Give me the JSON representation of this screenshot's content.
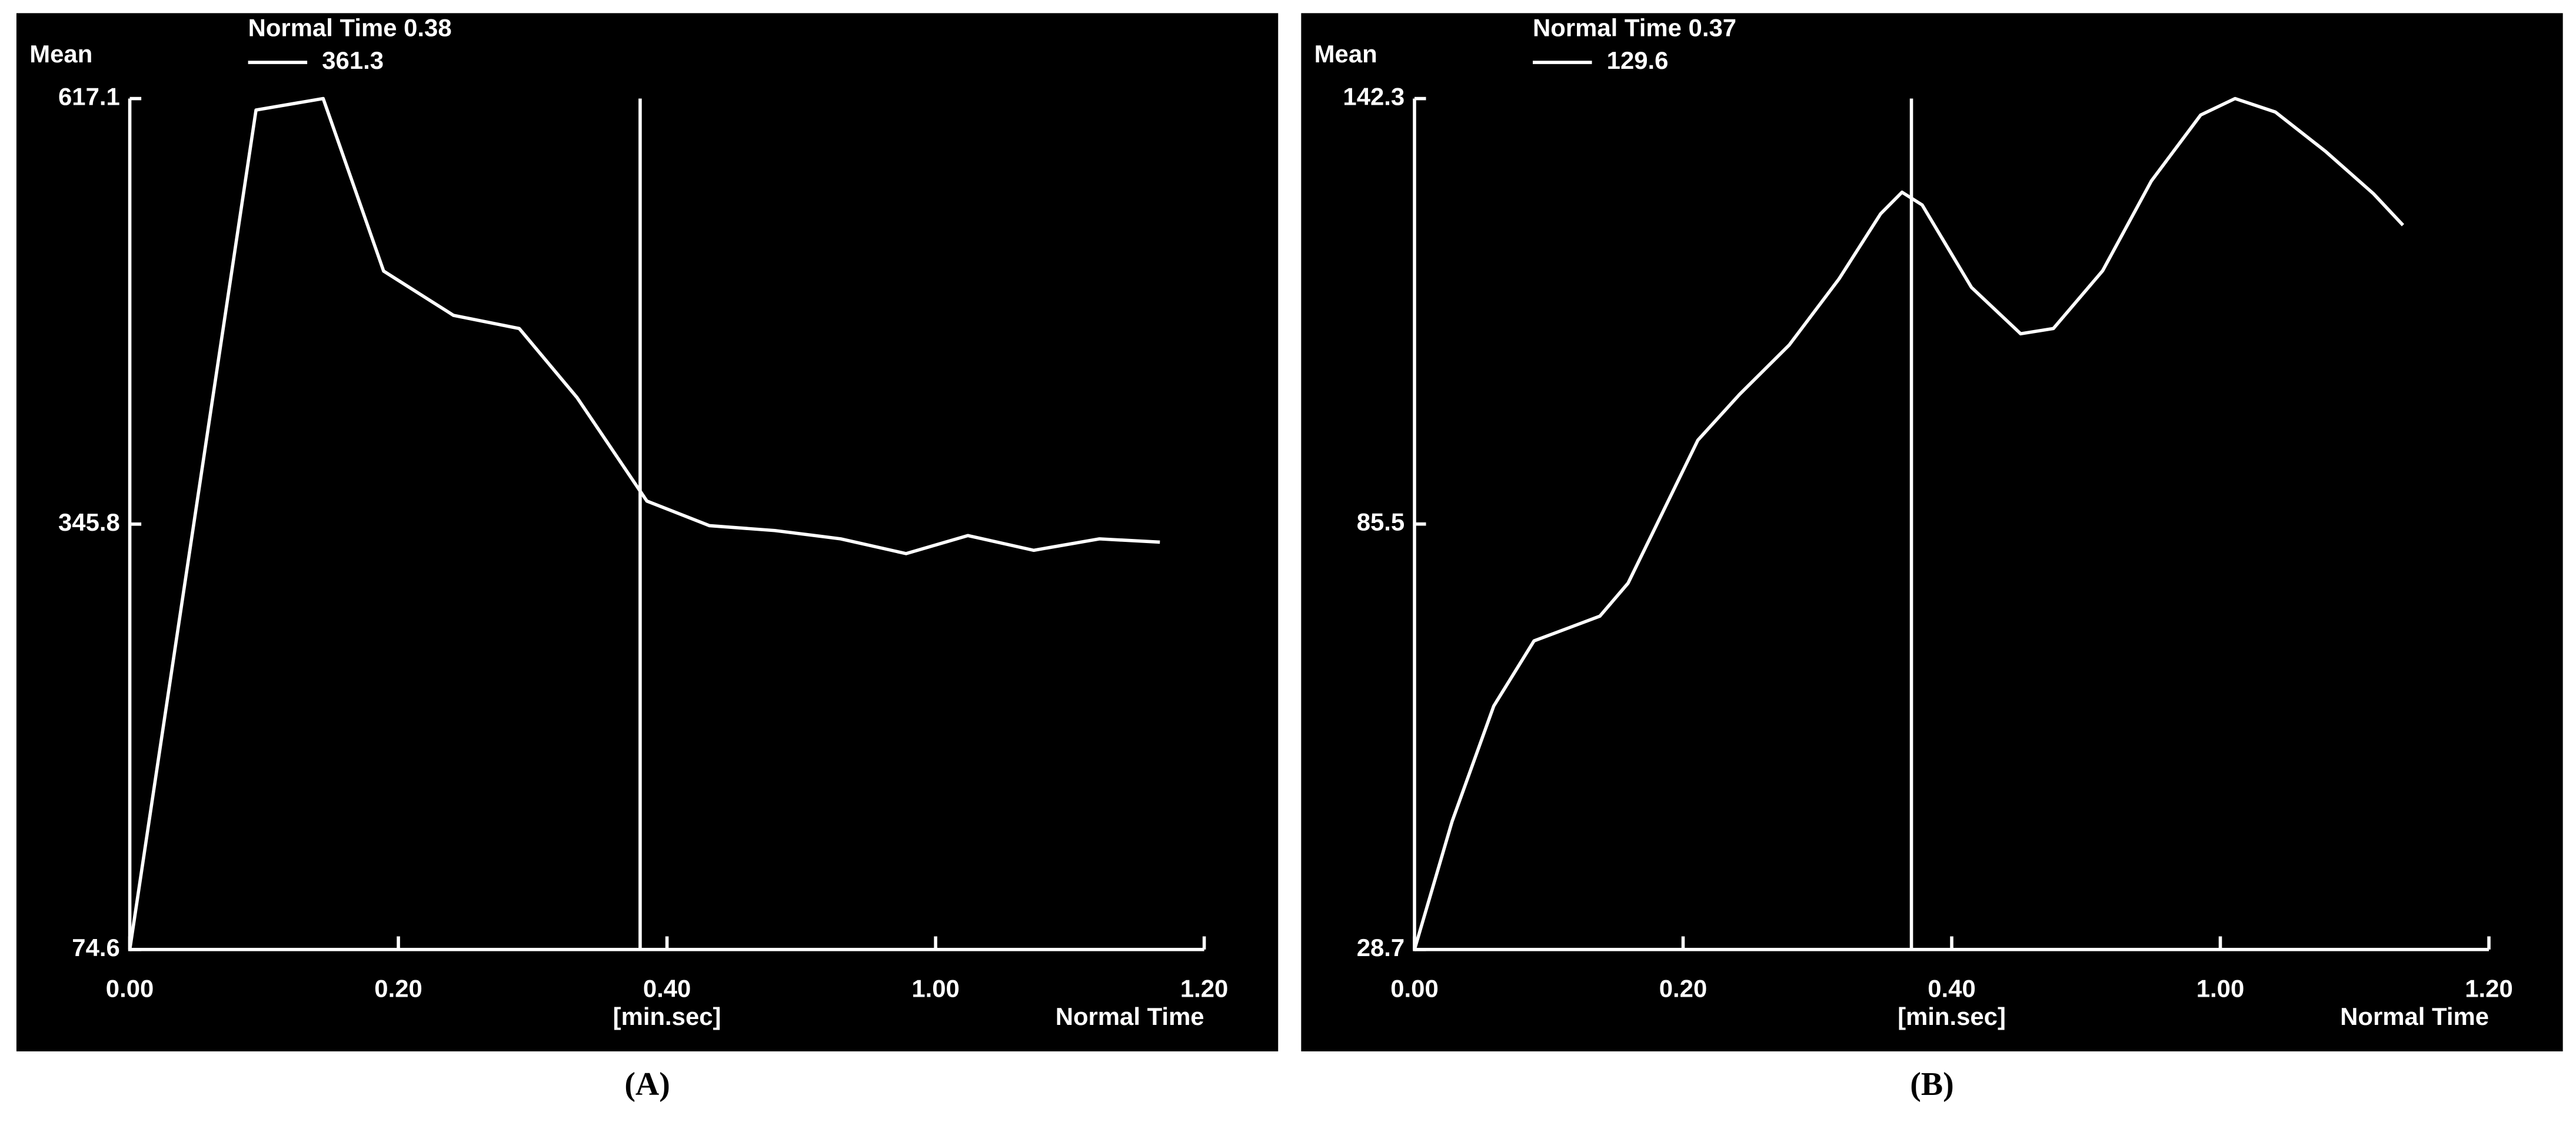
{
  "chart_data": [
    {
      "type": "line",
      "panel_label": "(A)",
      "title": "Normal Time 0.38",
      "cursor_x": 0.38,
      "ylabel": "Mean",
      "xlabel": "Normal Time",
      "xunit": "[min.sec]",
      "background": "#000000",
      "x": [
        0,
        0.094,
        0.144,
        0.189,
        0.241,
        0.29,
        0.333,
        0.385,
        0.495,
        0.641,
        0.788,
        0.934,
        1.024,
        1.073,
        1.122,
        1.167
      ],
      "series": [
        {
          "name": "361.3",
          "color": "#ffffff",
          "values": [
            74.6,
            609.8,
            617.1,
            507.1,
            478.9,
            470.5,
            426.5,
            360.5,
            344.8,
            341.7,
            336.4,
            327.0,
            338.5,
            329.1,
            336.4,
            334.3
          ]
        }
      ],
      "xlim": [
        0,
        1.2
      ],
      "xticks": [
        {
          "value": 0,
          "label": "0.00"
        },
        {
          "value": 0.2,
          "label": "0.20"
        },
        {
          "value": 0.4,
          "label": "0.40"
        },
        {
          "value": 1,
          "label": "1.00"
        },
        {
          "value": 1.2,
          "label": "1.20"
        }
      ],
      "ylim": [
        74.6,
        617.1
      ],
      "yticks": [
        74.6,
        345.8,
        617.1
      ]
    },
    {
      "type": "line",
      "panel_label": "(B)",
      "title": "Normal Time 0.37",
      "cursor_x": 0.37,
      "ylabel": "Mean",
      "xlabel": "Normal Time",
      "xunit": "[min.sec]",
      "background": "#000000",
      "x": [
        0,
        0.028,
        0.059,
        0.089,
        0.138,
        0.159,
        0.18,
        0.211,
        0.242,
        0.279,
        0.316,
        0.347,
        0.363,
        0.378,
        0.444,
        0.554,
        0.627,
        0.737,
        0.846,
        0.956,
        1.011,
        1.041,
        1.078,
        1.114,
        1.136
      ],
      "series": [
        {
          "name": "129.6",
          "color": "#ffffff",
          "values": [
            28.7,
            45.8,
            61.2,
            69.9,
            73.2,
            77.6,
            85.3,
            96.7,
            102.8,
            109.4,
            118.2,
            126.9,
            129.8,
            128.1,
            117.1,
            110.9,
            111.6,
            119.3,
            131.3,
            140.1,
            142.3,
            140.5,
            135.3,
            129.6,
            125.4
          ]
        }
      ],
      "xlim": [
        0,
        1.2
      ],
      "xticks": [
        {
          "value": 0,
          "label": "0.00"
        },
        {
          "value": 0.2,
          "label": "0.20"
        },
        {
          "value": 0.4,
          "label": "0.40"
        },
        {
          "value": 1,
          "label": "1.00"
        },
        {
          "value": 1.2,
          "label": "1.20"
        }
      ],
      "ylim": [
        28.7,
        142.3
      ],
      "yticks": [
        28.7,
        85.5,
        142.3
      ]
    }
  ]
}
